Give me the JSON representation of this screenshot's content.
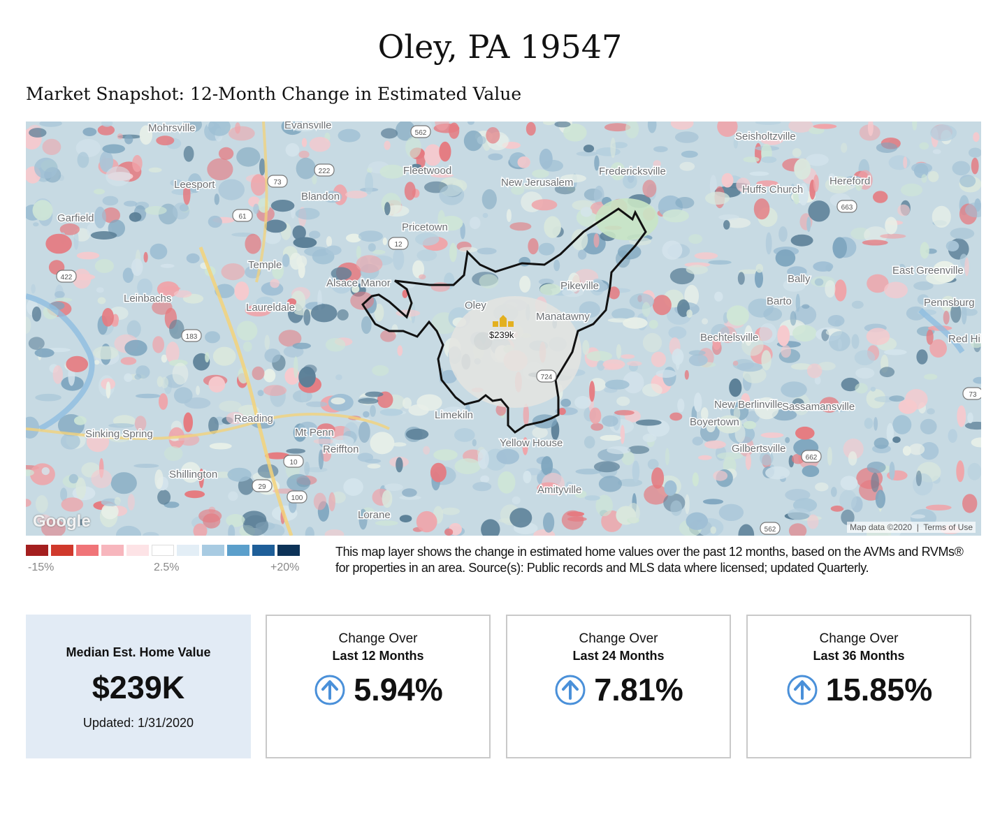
{
  "header": {
    "title": "Oley, PA 19547",
    "subtitle": "Market Snapshot: 12-Month Change in Estimated Value"
  },
  "map": {
    "marker_value": "$239k",
    "marker_icon": "house-cluster-icon",
    "attribution": "Map data ©2020",
    "terms": "Terms of Use",
    "provider_logo": "Google",
    "places": [
      "Mohrsville",
      "Evansville",
      "Leesport",
      "Blandon",
      "Fleetwood",
      "New Jerusalem",
      "Fredericksville",
      "Seisholtzville",
      "Huffs Church",
      "Hereford",
      "Garfield",
      "Pricetown",
      "Temple",
      "Alsace Manor",
      "Oley",
      "Pikeville",
      "Manatawny",
      "Bally",
      "East Greenville",
      "Barto",
      "Pennsburg",
      "Leinbachs",
      "Laureldale",
      "Bechtelsville",
      "Red Hill",
      "New Berlinville",
      "Sassamansville",
      "Boyertown",
      "Gilbertsville",
      "Reading",
      "Mt Penn",
      "Reiffton",
      "Limekiln",
      "Yellow House",
      "Sinking Spring",
      "Shillington",
      "Amityville",
      "Lorane"
    ],
    "route_numbers": [
      "562",
      "222",
      "73",
      "61",
      "12",
      "183",
      "422",
      "724",
      "10",
      "100",
      "29",
      "663",
      "73",
      "562",
      "662"
    ]
  },
  "legend": {
    "colors": [
      "#a41f1f",
      "#d0392c",
      "#f07478",
      "#f7b6bd",
      "#fde3e6",
      "#ffffff",
      "#e3eef6",
      "#a8cbe2",
      "#5b9fcb",
      "#1f5f99",
      "#0d3358"
    ],
    "label_low": "-15%",
    "label_mid": "2.5%",
    "label_high": "+20%",
    "description": "This map layer shows the change in estimated home values over the past 12 months, based on the AVMs and RVMs® for properties in an area. Source(s): Public records and MLS data where licensed; updated Quarterly."
  },
  "median": {
    "label": "Median Est. Home Value",
    "value": "$239K",
    "updated": "Updated: 1/31/2020"
  },
  "stats": [
    {
      "line1": "Change Over",
      "line2": "Last 12 Months",
      "value": "5.94%",
      "icon": "up-arrow-circle-icon"
    },
    {
      "line1": "Change Over",
      "line2": "Last 24 Months",
      "value": "7.81%",
      "icon": "up-arrow-circle-icon"
    },
    {
      "line1": "Change Over",
      "line2": "Last 36 Months",
      "value": "15.85%",
      "icon": "up-arrow-circle-icon"
    }
  ]
}
